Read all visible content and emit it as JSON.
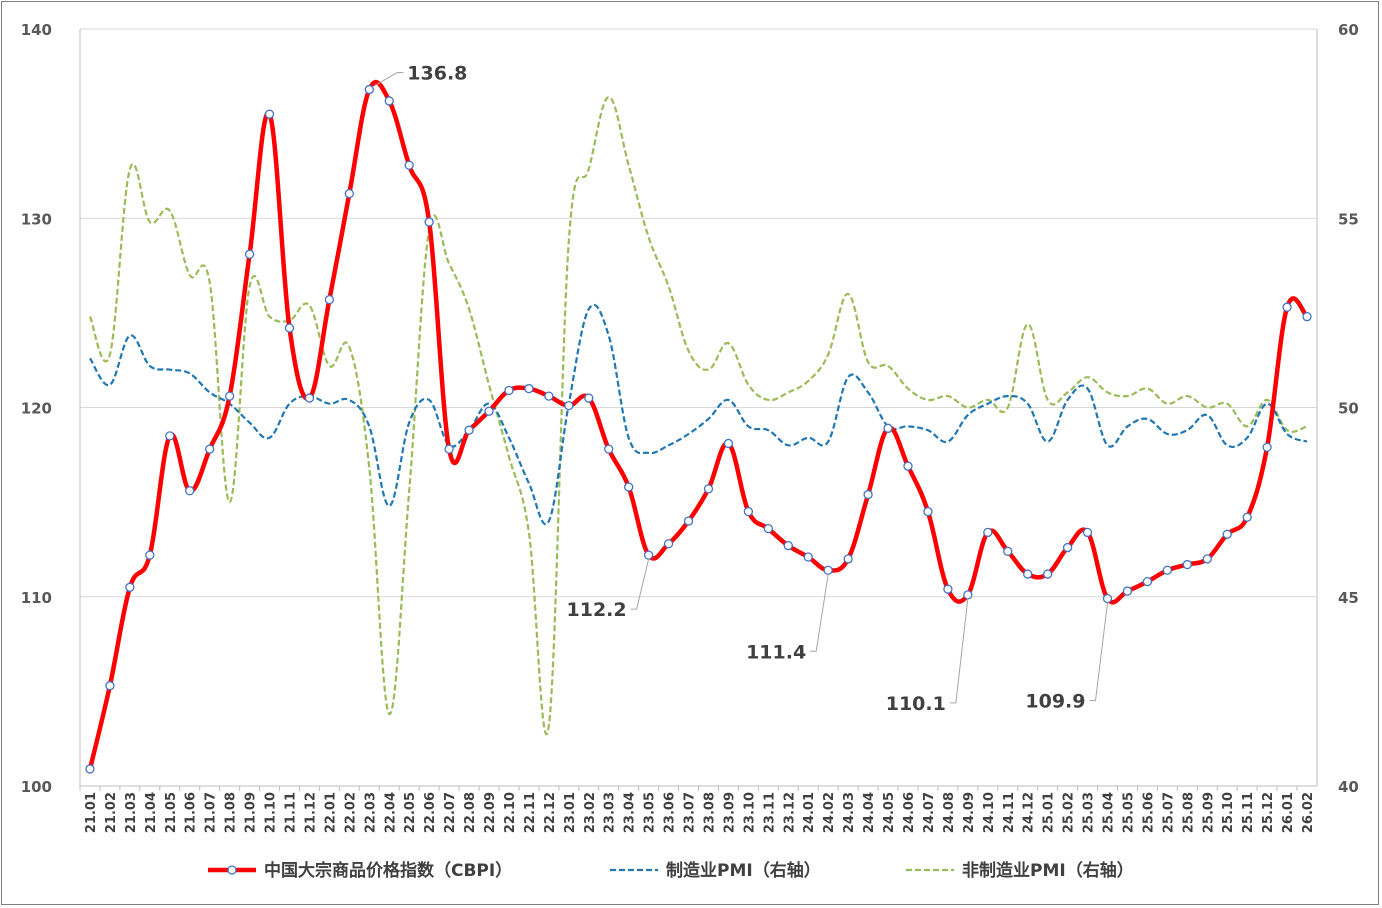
{
  "chart_data": {
    "type": "line",
    "categories": [
      "21.01",
      "21.02",
      "21.03",
      "21.04",
      "21.05",
      "21.06",
      "21.07",
      "21.08",
      "21.09",
      "21.10",
      "21.11",
      "21.12",
      "22.01",
      "22.02",
      "22.03",
      "22.04",
      "22.05",
      "22.06",
      "22.07",
      "22.08",
      "22.09",
      "22.10",
      "22.11",
      "22.12",
      "23.01",
      "23.02",
      "23.03",
      "23.04",
      "23.05",
      "23.06",
      "23.07",
      "23.08",
      "23.09",
      "23.10",
      "23.11",
      "23.12",
      "24.01",
      "24.02",
      "24.03",
      "24.04",
      "24.05",
      "24.06",
      "24.07",
      "24.08",
      "24.09",
      "24.10",
      "24.11",
      "24.12",
      "25.01",
      "25.02",
      "25.03",
      "25.04",
      "25.05",
      "25.06",
      "25.07",
      "25.08",
      "25.09",
      "25.10",
      "25.11",
      "25.12",
      "26.01",
      "26.02"
    ],
    "y_left": {
      "min": 100,
      "max": 140,
      "ticks": [
        "100",
        "110",
        "120",
        "130",
        "140"
      ]
    },
    "y_right": {
      "min": 40,
      "max": 60,
      "ticks": [
        "40",
        "45",
        "50",
        "55",
        "60"
      ]
    },
    "series": [
      {
        "name": "中国大宗商品价格指数（CBPI）",
        "axis": "left",
        "color": "#ff0000",
        "style": "solid-markers",
        "values": [
          100.9,
          105.3,
          110.5,
          112.2,
          118.5,
          115.6,
          117.8,
          120.6,
          128.1,
          135.5,
          124.2,
          120.5,
          125.7,
          131.3,
          136.8,
          136.2,
          132.8,
          129.8,
          117.8,
          118.8,
          119.8,
          120.9,
          121.0,
          120.6,
          120.1,
          120.5,
          117.8,
          115.8,
          112.2,
          112.8,
          114.0,
          115.7,
          118.1,
          114.5,
          113.6,
          112.7,
          112.1,
          111.4,
          112.0,
          115.4,
          118.9,
          116.9,
          114.5,
          110.4,
          110.1,
          113.4,
          112.4,
          111.2,
          111.2,
          112.6,
          113.4,
          109.9,
          110.3,
          110.8,
          111.4,
          111.7,
          112.0,
          113.3,
          114.2,
          117.9,
          125.3,
          124.8
        ]
      },
      {
        "name": "制造业PMI（右轴）",
        "axis": "right",
        "color": "#1f77b4",
        "style": "dashed",
        "values": [
          51.3,
          50.6,
          51.9,
          51.1,
          51.0,
          50.9,
          50.4,
          50.1,
          49.6,
          49.2,
          50.1,
          50.3,
          50.1,
          50.2,
          49.5,
          47.4,
          49.6,
          50.2,
          49.0,
          49.4,
          50.1,
          49.2,
          48.0,
          47.0,
          50.1,
          52.6,
          51.9,
          49.2,
          48.8,
          49.0,
          49.3,
          49.7,
          50.2,
          49.5,
          49.4,
          49.0,
          49.2,
          49.1,
          50.8,
          50.4,
          49.5,
          49.5,
          49.4,
          49.1,
          49.8,
          50.1,
          50.3,
          50.1,
          49.1,
          50.2,
          50.5,
          49.0,
          49.5,
          49.7,
          49.3,
          49.4,
          49.8,
          49.0,
          49.2,
          50.1,
          49.3,
          49.1
        ]
      },
      {
        "name": "非制造业PMI（右轴）",
        "axis": "right",
        "color": "#9bbb59",
        "style": "dashed",
        "values": [
          52.4,
          51.4,
          56.3,
          54.9,
          55.2,
          53.5,
          53.3,
          47.5,
          53.2,
          52.4,
          52.3,
          52.7,
          51.1,
          51.6,
          48.4,
          41.9,
          47.8,
          54.7,
          53.8,
          52.6,
          50.6,
          48.7,
          46.7,
          41.6,
          54.4,
          56.3,
          58.2,
          56.4,
          54.5,
          53.2,
          51.5,
          51.0,
          51.7,
          50.6,
          50.2,
          50.4,
          50.7,
          51.4,
          53.0,
          51.2,
          51.1,
          50.5,
          50.2,
          50.3,
          50.0,
          50.2,
          50.0,
          52.2,
          50.2,
          50.4,
          50.8,
          50.4,
          50.3,
          50.5,
          50.1,
          50.3,
          50.0,
          50.1,
          49.5,
          50.2,
          49.4,
          49.5
        ]
      }
    ],
    "annotations": [
      {
        "label": "136.8",
        "index": 14
      },
      {
        "label": "112.2",
        "index": 28
      },
      {
        "label": "111.4",
        "index": 37
      },
      {
        "label": "110.1",
        "index": 44
      },
      {
        "label": "109.9",
        "index": 51
      }
    ],
    "legend_position": "bottom",
    "grid": true
  }
}
